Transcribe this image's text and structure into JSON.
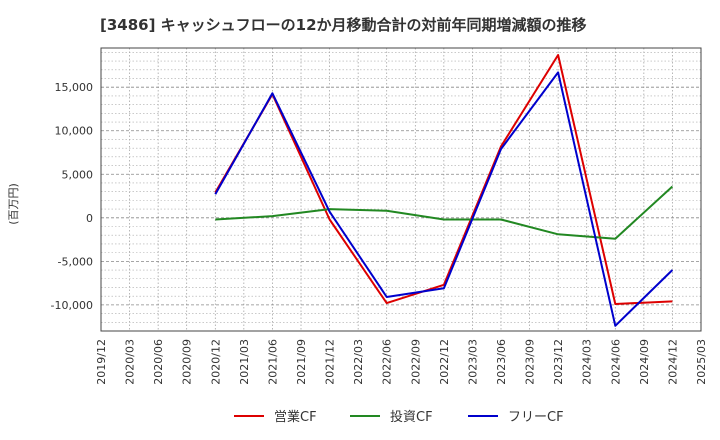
{
  "chart_data": {
    "type": "line",
    "title": "[3486]  キャッシュフローの12か月移動合計の対前年同期増減額の推移",
    "ylabel": "(百万円)",
    "xlabel": "",
    "ylim": [
      -13000,
      19500
    ],
    "yticks": [
      -10000,
      -5000,
      0,
      5000,
      10000,
      15000
    ],
    "ytick_labels": [
      "-10,000",
      "-5,000",
      "0",
      "5,000",
      "10,000",
      "15,000"
    ],
    "categories": [
      "2019/12",
      "2020/03",
      "2020/06",
      "2020/09",
      "2020/12",
      "2021/03",
      "2021/06",
      "2021/09",
      "2021/12",
      "2022/03",
      "2022/06",
      "2022/09",
      "2022/12",
      "2023/03",
      "2023/06",
      "2023/09",
      "2023/12",
      "2024/03",
      "2024/06",
      "2024/09",
      "2024/12",
      "2025/03"
    ],
    "grid": true,
    "legend_position": "bottom",
    "series": [
      {
        "name": "営業CF",
        "color": "#dd0000",
        "values": [
          null,
          null,
          null,
          null,
          2900,
          null,
          14200,
          null,
          -200,
          null,
          -9800,
          null,
          -7700,
          null,
          8200,
          null,
          18700,
          null,
          -9900,
          null,
          -9600,
          null
        ]
      },
      {
        "name": "投資CF",
        "color": "#228822",
        "values": [
          null,
          null,
          null,
          null,
          -200,
          null,
          200,
          null,
          1000,
          null,
          800,
          null,
          -200,
          null,
          -200,
          null,
          -1900,
          null,
          -2400,
          null,
          3600,
          null
        ]
      },
      {
        "name": "フリーCF",
        "color": "#0000cc",
        "values": [
          null,
          null,
          null,
          null,
          2700,
          null,
          14300,
          null,
          700,
          null,
          -9100,
          null,
          -8100,
          null,
          7900,
          null,
          16700,
          null,
          -12400,
          null,
          -6000,
          null
        ]
      }
    ]
  }
}
